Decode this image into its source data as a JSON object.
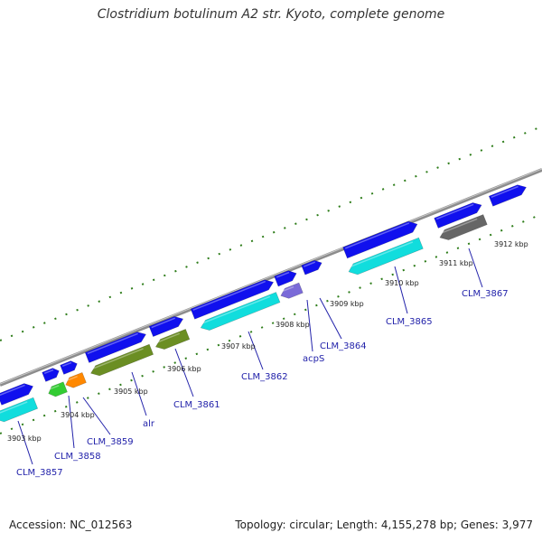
{
  "title": "Clostridium botulinum A2 str. Kyoto, complete genome",
  "footer": {
    "accession": "Accession: NC_012563",
    "summary": "Topology: circular; Length: 4,155,278 bp; Genes: 3,977"
  },
  "colors": {
    "backbone": "#8c8c8c",
    "tick": "#2e7d1a",
    "forward_cds": "#1010ee",
    "reverse_cds": "#11dddd",
    "label": "#2222aa"
  },
  "kbp_labels": [
    "3903 kbp",
    "3904 kbp",
    "3905 kbp",
    "3906 kbp",
    "3907 kbp",
    "3908 kbp",
    "3909 kbp",
    "3910 kbp",
    "3911 kbp",
    "3912 kbp"
  ],
  "gene_labels": [
    "CLM_3857",
    "CLM_3858",
    "CLM_3859",
    "alr",
    "CLM_3861",
    "CLM_3862",
    "acpS",
    "CLM_3864",
    "CLM_3865",
    "CLM_3867"
  ]
}
